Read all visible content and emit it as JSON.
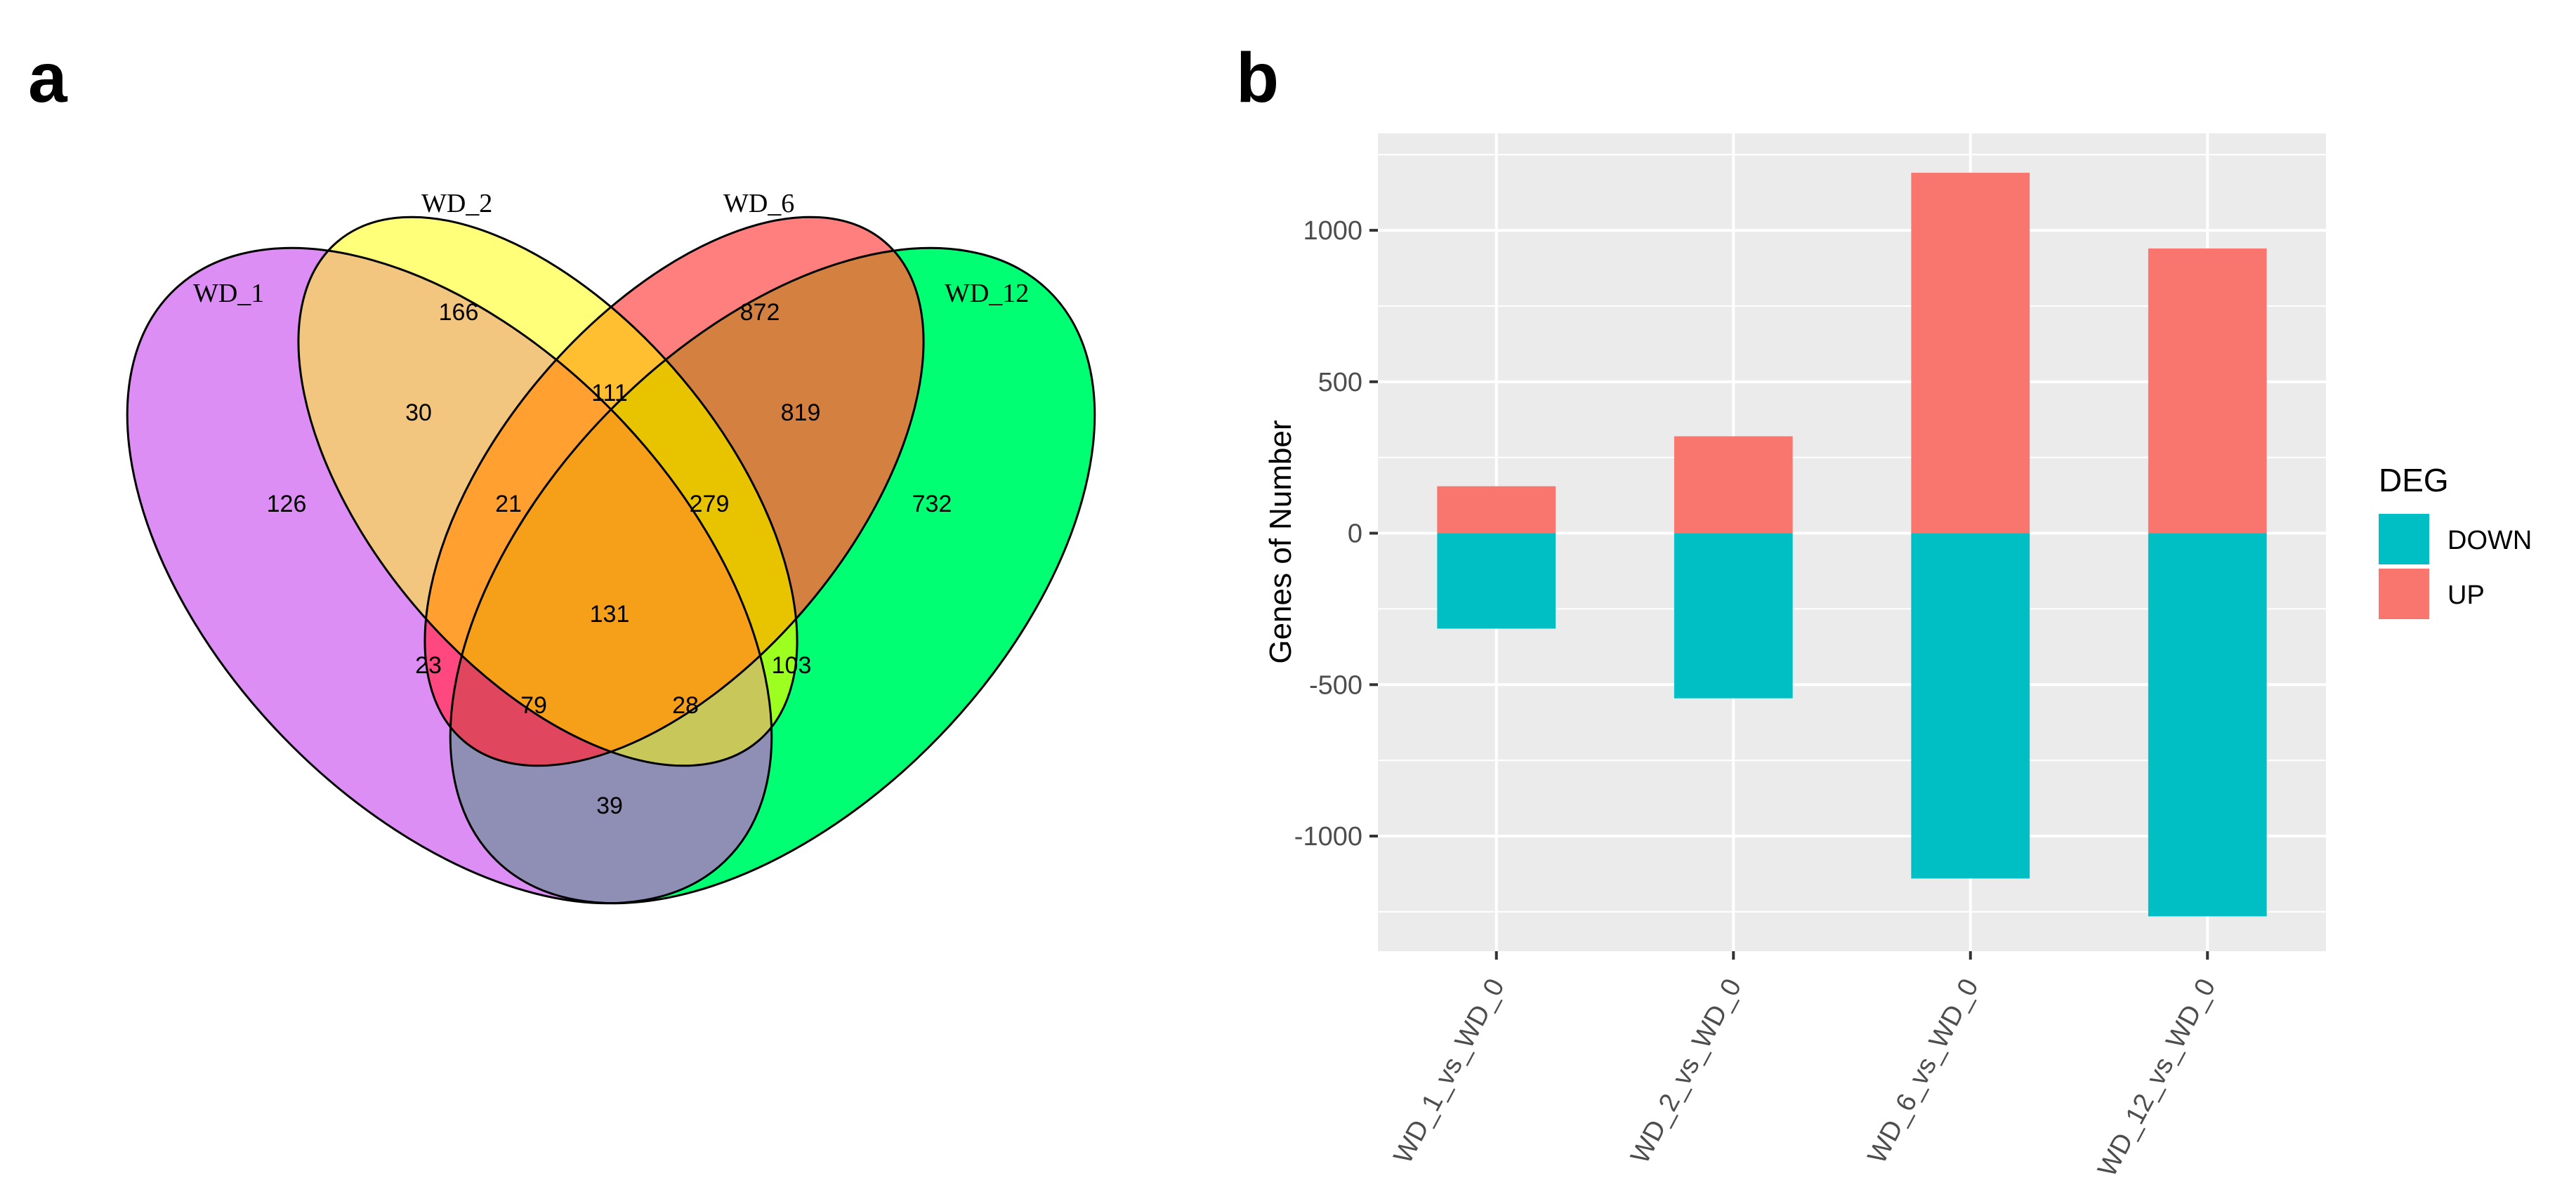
{
  "panels": {
    "a": "a",
    "b": "b"
  },
  "venn": {
    "sets": [
      "WD_1",
      "WD_2",
      "WD_6",
      "WD_12"
    ],
    "colors": {
      "WD_1": "#dd8ef5",
      "WD_2": "#ffff7a",
      "WD_6": "#ff7f7f",
      "WD_12": "#00ff73"
    },
    "regions": {
      "only_wd1": 126,
      "only_wd2": 166,
      "only_wd6": 872,
      "only_wd12": 732,
      "wd1_wd2": 30,
      "wd2_wd6": 111,
      "wd6_wd12": 819,
      "wd1_wd2_wd6": 21,
      "wd2_wd6_wd12": 279,
      "all_four": 131,
      "wd1_wd6": 23,
      "wd2_wd12": 103,
      "wd1_wd6_wd12": 79,
      "wd1_wd2_wd12": 28,
      "wd1_wd12": 39
    }
  },
  "chart_data": {
    "type": "bar",
    "stacked": true,
    "categories": [
      "WD_1_vs_WD_0",
      "WD_2_vs_WD_0",
      "WD_6_vs_WD_0",
      "WD_12_vs_WD_0"
    ],
    "series": [
      {
        "name": "DOWN",
        "color": "#00bfc4",
        "values": [
          -315,
          -545,
          -1140,
          -1265
        ]
      },
      {
        "name": "UP",
        "color": "#f8766d",
        "values": [
          155,
          320,
          1190,
          940
        ]
      }
    ],
    "ylabel": "Genes of Number",
    "xlabel": "",
    "ylim": [
      -1380,
      1320
    ],
    "yticks": [
      -1000,
      -500,
      0,
      500,
      1000
    ],
    "yticklabels": [
      "-1000",
      "-500",
      "0",
      "500",
      "1000"
    ],
    "legend": {
      "title": "DEG",
      "entries": [
        "DOWN",
        "UP"
      ],
      "placement": "right"
    },
    "grid": true
  }
}
